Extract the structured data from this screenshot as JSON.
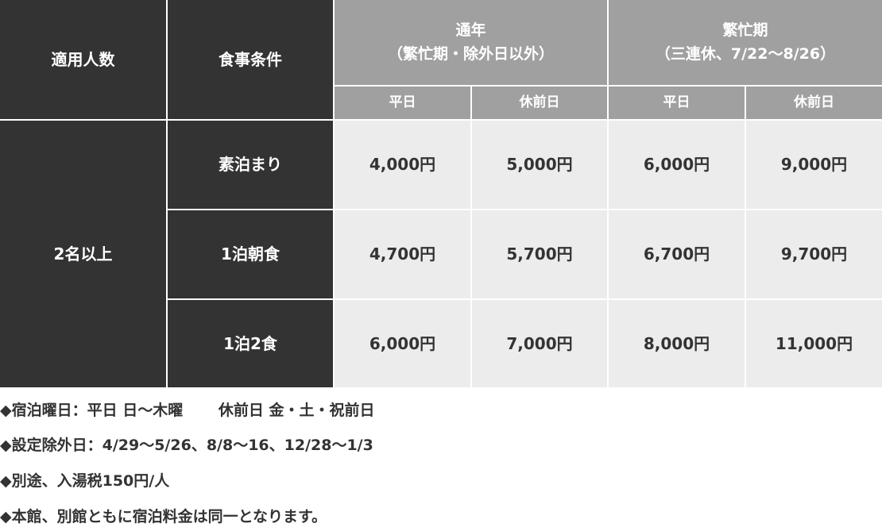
{
  "table": {
    "headers": {
      "persons": "適用人数",
      "meal": "食事条件",
      "regular": {
        "line1": "通年",
        "line2": "（繁忙期・除外日以外）"
      },
      "busy": {
        "line1": "繁忙期",
        "line2": "（三連休、7/22〜8/26）"
      },
      "sub": [
        "平日",
        "休前日",
        "平日",
        "休前日"
      ]
    },
    "persons_value": "2名以上",
    "rows": [
      {
        "meal": "素泊まり",
        "prices": [
          "4,000円",
          "5,000円",
          "6,000円",
          "9,000円"
        ]
      },
      {
        "meal": "1泊朝食",
        "prices": [
          "4,700円",
          "5,700円",
          "6,700円",
          "9,700円"
        ]
      },
      {
        "meal": "1泊2食",
        "prices": [
          "6,000円",
          "7,000円",
          "8,000円",
          "11,000円"
        ]
      }
    ]
  },
  "notes": [
    "◆宿泊曜日：平日 日〜木曜　　 休前日 金・土・祝前日",
    "◆設定除外日：4/29〜5/26、8/8〜16、12/28〜1/3",
    "◆別途、入湯税150円/人",
    "◆本館、別館ともに宿泊料金は同一となります。"
  ],
  "colors": {
    "dark": "#333333",
    "header_gray": "#a0a0a0",
    "cell": "#ececec"
  }
}
